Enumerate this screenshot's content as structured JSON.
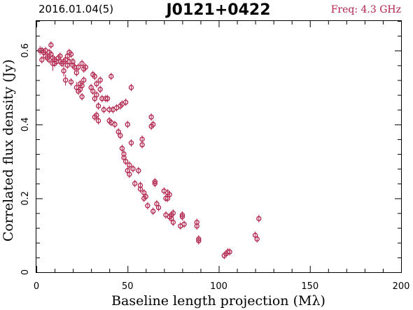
{
  "header": {
    "left_text": "2016.01.04(5)",
    "title": "J0121+0422",
    "freq_text": "Freq: 4.3 GHz"
  },
  "colors": {
    "data": "#b0204a",
    "axes": "#000000"
  },
  "chart_data": {
    "type": "scatter",
    "title": "J0121+0422",
    "xlabel": "Baseline length projection (Mλ)",
    "ylabel": "Correlated flux density (Jy)",
    "xlim": [
      0,
      200
    ],
    "ylim": [
      0,
      0.68
    ],
    "xticks": [
      0,
      50,
      100,
      150,
      200
    ],
    "xtick_labels": [
      "0",
      "50",
      "100",
      "150",
      "200"
    ],
    "yticks": [
      0,
      0.2,
      0.4,
      0.6
    ],
    "ytick_labels": [
      "0",
      "0.2",
      "0.4",
      "0.6"
    ],
    "grid": false,
    "series": [
      {
        "marker": "open-circle",
        "x": [
          2,
          3,
          3,
          4,
          5,
          5,
          6,
          7,
          7,
          8,
          8,
          9,
          9,
          10,
          10,
          11,
          12,
          13,
          13,
          14,
          15,
          15,
          16,
          16,
          17,
          17,
          18,
          18,
          19,
          19,
          20,
          20,
          21,
          22,
          22,
          23,
          23,
          24,
          24,
          25,
          25,
          25,
          26,
          26,
          27,
          30,
          31,
          31,
          32,
          32,
          32,
          33,
          33,
          33,
          34,
          34,
          35,
          35,
          36,
          37,
          38,
          39,
          40,
          40,
          41,
          41,
          42,
          43,
          44,
          45,
          46,
          46,
          47,
          47,
          48,
          48,
          49,
          49,
          50,
          50,
          51,
          51,
          52,
          52,
          53,
          54,
          56,
          57,
          57,
          58,
          58,
          59,
          59,
          60,
          61,
          63,
          63,
          64,
          64,
          65,
          65,
          66,
          67,
          70,
          71,
          71,
          72,
          72,
          73,
          73,
          74,
          74,
          75,
          75,
          79,
          80,
          80,
          81,
          88,
          88,
          89,
          89,
          103,
          104,
          105,
          106,
          120,
          121,
          122
        ],
        "y": [
          0.6,
          0.575,
          0.6,
          0.595,
          0.585,
          0.6,
          0.58,
          0.575,
          0.595,
          0.59,
          0.615,
          0.58,
          0.565,
          0.575,
          0.565,
          0.57,
          0.58,
          0.585,
          0.57,
          0.565,
          0.57,
          0.545,
          0.575,
          0.52,
          0.56,
          0.585,
          0.595,
          0.57,
          0.59,
          0.515,
          0.57,
          0.56,
          0.555,
          0.54,
          0.5,
          0.555,
          0.49,
          0.495,
          0.51,
          0.505,
          0.475,
          0.565,
          0.55,
          0.52,
          0.555,
          0.5,
          0.49,
          0.535,
          0.53,
          0.47,
          0.42,
          0.51,
          0.48,
          0.425,
          0.45,
          0.41,
          0.52,
          0.495,
          0.47,
          0.44,
          0.47,
          0.47,
          0.41,
          0.44,
          0.405,
          0.53,
          0.44,
          0.4,
          0.445,
          0.38,
          0.37,
          0.45,
          0.455,
          0.335,
          0.31,
          0.32,
          0.46,
          0.3,
          0.275,
          0.4,
          0.29,
          0.265,
          0.35,
          0.5,
          0.28,
          0.24,
          0.275,
          0.235,
          0.225,
          0.36,
          0.345,
          0.215,
          0.2,
          0.205,
          0.18,
          0.395,
          0.42,
          0.4,
          0.165,
          0.245,
          0.24,
          0.185,
          0.175,
          0.22,
          0.2,
          0.155,
          0.215,
          0.2,
          0.21,
          0.15,
          0.155,
          0.145,
          0.16,
          0.135,
          0.125,
          0.15,
          0.155,
          0.13,
          0.125,
          0.135,
          0.09,
          0.085,
          0.045,
          0.05,
          0.055,
          0.055,
          0.1,
          0.09,
          0.145
        ],
        "err": [
          0.012,
          0.01,
          0.01,
          0.01,
          0.01,
          0.01,
          0.01,
          0.01,
          0.01,
          0.01,
          0.01,
          0.012,
          0.02,
          0.01,
          0.01,
          0.01,
          0.01,
          0.01,
          0.01,
          0.01,
          0.01,
          0.015,
          0.01,
          0.015,
          0.01,
          0.01,
          0.01,
          0.01,
          0.01,
          0.01,
          0.01,
          0.01,
          0.01,
          0.01,
          0.015,
          0.01,
          0.01,
          0.01,
          0.01,
          0.01,
          0.01,
          0.01,
          0.01,
          0.01,
          0.01,
          0.01,
          0.01,
          0.01,
          0.01,
          0.01,
          0.01,
          0.01,
          0.01,
          0.01,
          0.01,
          0.01,
          0.01,
          0.01,
          0.01,
          0.01,
          0.01,
          0.01,
          0.01,
          0.01,
          0.01,
          0.01,
          0.01,
          0.01,
          0.01,
          0.01,
          0.01,
          0.01,
          0.01,
          0.01,
          0.01,
          0.01,
          0.01,
          0.01,
          0.01,
          0.01,
          0.01,
          0.01,
          0.01,
          0.01,
          0.01,
          0.01,
          0.01,
          0.01,
          0.01,
          0.01,
          0.01,
          0.01,
          0.01,
          0.01,
          0.01,
          0.01,
          0.01,
          0.01,
          0.01,
          0.01,
          0.01,
          0.01,
          0.01,
          0.01,
          0.01,
          0.01,
          0.01,
          0.01,
          0.01,
          0.01,
          0.01,
          0.01,
          0.01,
          0.01,
          0.01,
          0.01,
          0.01,
          0.01,
          0.01,
          0.01,
          0.01,
          0.01,
          0.01,
          0.01,
          0.01,
          0.01,
          0.01,
          0.01,
          0.01
        ]
      }
    ]
  }
}
